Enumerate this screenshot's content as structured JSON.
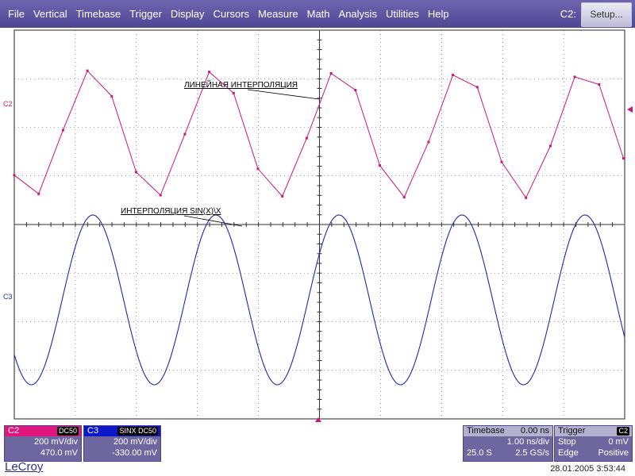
{
  "menu": [
    "File",
    "Vertical",
    "Timebase",
    "Trigger",
    "Display",
    "Cursors",
    "Measure",
    "Math",
    "Analysis",
    "Utilities",
    "Help"
  ],
  "header": {
    "channel": "C2:",
    "setup_label": "Setup..."
  },
  "grid": {
    "divisions_x": 10,
    "divisions_y": 8
  },
  "annotations": {
    "linear": "ЛИНЕЙНАЯ ИНТЕРПОЛЯЦИЯ",
    "sinx": "ИНТЕРПОЛЯЦИЯ SIN(X)\\X"
  },
  "traces": {
    "c2": {
      "label": "C2",
      "color": "#d0147a"
    },
    "c3": {
      "label": "C3",
      "color": "#1c2aa8"
    }
  },
  "channels": [
    {
      "name": "C2",
      "coupling": "DC50",
      "scale": "200 mV/div",
      "offset": "470.0 mV",
      "color": "#e0167d"
    },
    {
      "name": "C3",
      "coupling": "SINX DC50",
      "scale": "200 mV/div",
      "offset": "-330.00 mV",
      "color": "#0b17c8"
    }
  ],
  "timebase": {
    "label": "Timebase",
    "delay": "0.00 ns",
    "per_div": "1.00 ns/div",
    "samples": "25.0 S",
    "rate": "2.5 GS/s"
  },
  "trigger": {
    "label": "Trigger",
    "source": "C2",
    "mode": "Stop",
    "level": "0 mV",
    "type": "Edge",
    "slope": "Positive"
  },
  "footer": {
    "brand": "LeCroy",
    "datetime": "28.01.2005 3:53:44"
  }
}
